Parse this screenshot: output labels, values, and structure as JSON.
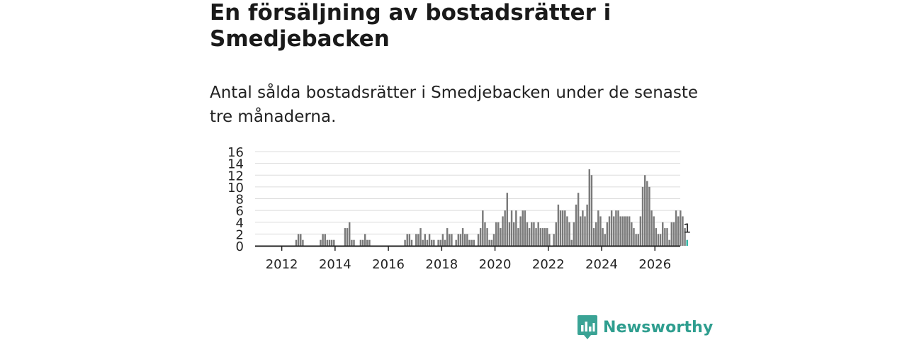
{
  "header": {
    "title": "En försäljning av bostadsrätter i Smedjebacken",
    "subtitle": "Antal sålda bostadsrätter i Smedjebacken under de senaste tre månaderna."
  },
  "brand": {
    "name": "Newsworthy",
    "icon": "newsworthy-logo-icon",
    "color": "#3aa395"
  },
  "colors": {
    "bar": "#7a7a7a",
    "highlight": "#2bb3a3",
    "grid": "#dcdcdc",
    "axis": "#222222"
  },
  "chart_data": {
    "type": "bar",
    "title": "",
    "xlabel": "",
    "ylabel": "",
    "ylim": [
      0,
      16
    ],
    "yticks": [
      0,
      2,
      4,
      6,
      8,
      10,
      12,
      14,
      16
    ],
    "xticks": [
      "2012",
      "2014",
      "2016",
      "2018",
      "2020",
      "2022",
      "2024",
      "2026"
    ],
    "start": "2011-01",
    "highlight_label": "1",
    "series": [
      {
        "name": "Antal sålda bostadsrätter",
        "values": [
          0,
          0,
          0,
          0,
          0,
          0,
          0,
          0,
          0,
          0,
          0,
          0,
          0,
          0,
          0,
          0,
          0,
          0,
          1,
          2,
          2,
          1,
          0,
          0,
          0,
          0,
          0,
          0,
          0,
          1,
          2,
          2,
          1,
          1,
          1,
          1,
          0,
          0,
          0,
          0,
          3,
          3,
          4,
          1,
          1,
          0,
          0,
          1,
          1,
          2,
          1,
          1,
          0,
          0,
          0,
          0,
          0,
          0,
          0,
          0,
          0,
          0,
          0,
          0,
          0,
          0,
          0,
          1,
          2,
          2,
          1,
          0,
          2,
          2,
          3,
          1,
          2,
          1,
          2,
          1,
          1,
          0,
          1,
          1,
          2,
          1,
          3,
          2,
          2,
          0,
          1,
          2,
          2,
          3,
          2,
          2,
          1,
          1,
          1,
          0,
          2,
          3,
          6,
          4,
          3,
          1,
          1,
          2,
          4,
          4,
          3,
          5,
          6,
          9,
          4,
          6,
          4,
          6,
          3,
          5,
          6,
          6,
          4,
          3,
          4,
          4,
          3,
          4,
          3,
          3,
          3,
          3,
          2,
          0,
          2,
          4,
          7,
          6,
          6,
          6,
          5,
          4,
          1,
          4,
          7,
          9,
          5,
          6,
          5,
          7,
          13,
          12,
          3,
          4,
          6,
          5,
          3,
          2,
          4,
          5,
          6,
          5,
          6,
          6,
          5,
          5,
          5,
          5,
          5,
          4,
          3,
          2,
          2,
          5,
          10,
          12,
          11,
          10,
          6,
          5,
          3,
          2,
          2,
          4,
          3,
          3,
          1,
          4,
          4,
          6,
          5,
          6,
          5,
          3,
          1
        ]
      }
    ]
  }
}
